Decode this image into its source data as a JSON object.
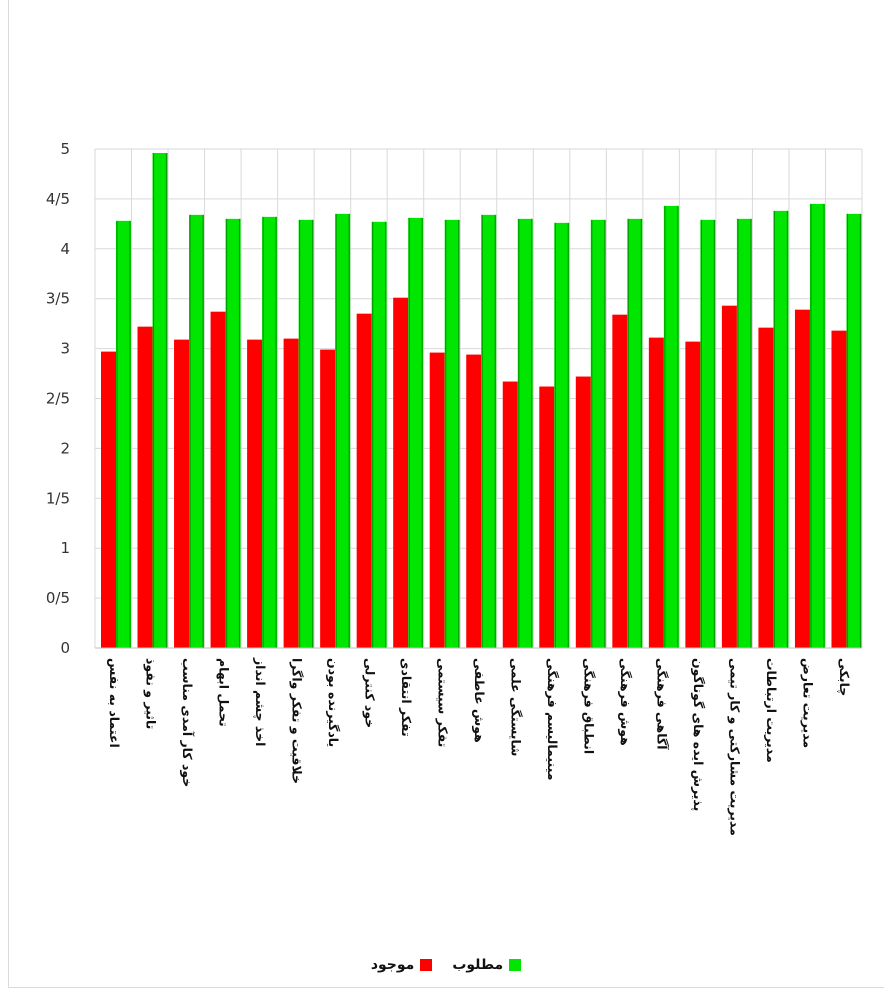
{
  "chart_data": {
    "type": "bar",
    "categories": [
      "اعتماد به نفس",
      "تاثیر و نفوذ",
      "خود کار آمدی مناسب",
      "تحمل ابهام",
      "اخذ چشم انداز",
      "خلاقیت و تفکر واگرا",
      "یادگیرنده بودن",
      "خود کنترلی",
      "تفکر انتقادی",
      "تفکر سیستمی",
      "هوش عاطفی",
      "شایستگی علمی",
      "مینیمالیسم فرهنگی",
      "انطباق فرهنگی",
      "هوش فرهنگی",
      "آگاهی فرهنگی",
      "پذیرش ایده های گوناگون",
      "مدیریت مشارکتی و کار تیمی",
      "مدیریت ارتباطات",
      "مدیریت تعارض",
      "چابکی"
    ],
    "series": [
      {
        "name": "موجود",
        "color": "#ff0000",
        "values": [
          2.97,
          3.22,
          3.09,
          3.37,
          3.09,
          3.1,
          2.99,
          3.35,
          3.51,
          2.96,
          2.94,
          2.67,
          2.62,
          2.72,
          3.34,
          3.11,
          3.07,
          3.43,
          3.21,
          3.39,
          3.18
        ]
      },
      {
        "name": "مطلوب",
        "color": "#00e600",
        "values": [
          4.28,
          4.96,
          4.34,
          4.3,
          4.32,
          4.29,
          4.35,
          4.27,
          4.31,
          4.29,
          4.34,
          4.3,
          4.26,
          4.29,
          4.3,
          4.43,
          4.29,
          4.3,
          4.38,
          4.45,
          4.35
        ]
      }
    ],
    "yticks": [
      "0",
      "0/5",
      "1",
      "1/5",
      "2",
      "2/5",
      "3",
      "3/5",
      "4",
      "4/5",
      "5"
    ],
    "ylim": [
      0,
      5
    ],
    "grid": true,
    "legend_position": "bottom",
    "xlabel": "",
    "ylabel": ""
  },
  "legend": {
    "items": [
      {
        "label": "مطلوب",
        "color": "#00e600"
      },
      {
        "label": "موجود",
        "color": "#ff0000"
      }
    ]
  }
}
